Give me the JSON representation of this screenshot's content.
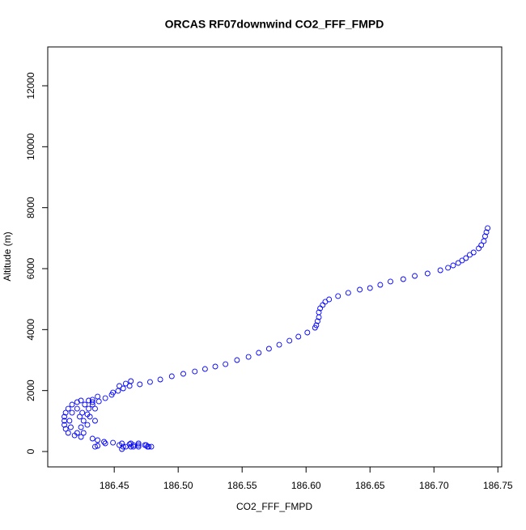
{
  "chart_data": {
    "type": "scatter",
    "title": "ORCAS RF07downwind CO2_FFF_FMPD",
    "x_label": "CO2_FFF_FMPD",
    "y_label": "Altitude (m)",
    "color": "#0000ff",
    "xlim": [
      186.398,
      186.753
    ],
    "ylim": [
      -504,
      13274
    ],
    "xticks": [
      186.45,
      {
        "value": 186.5,
        "label": "186.50"
      },
      186.55,
      {
        "value": 186.6,
        "label": "186.60"
      },
      186.65,
      {
        "value": 186.7,
        "label": "186.70"
      },
      186.75
    ],
    "yticks": [
      0,
      2000,
      4000,
      6000,
      8000,
      10000,
      12000
    ],
    "x": [
      186.742,
      186.741,
      186.74,
      186.739,
      186.737,
      186.735,
      186.731,
      186.728,
      186.725,
      186.722,
      186.719,
      186.715,
      186.711,
      186.705,
      186.695,
      186.685,
      186.676,
      186.666,
      186.658,
      186.65,
      186.642,
      186.633,
      186.625,
      186.618,
      186.615,
      186.613,
      186.611,
      186.61,
      186.61,
      186.609,
      186.608,
      186.607,
      186.601,
      186.594,
      186.587,
      186.579,
      186.571,
      186.563,
      186.555,
      186.546,
      186.537,
      186.529,
      186.521,
      186.513,
      186.504,
      186.495,
      186.486,
      186.478,
      186.47,
      186.462,
      186.457,
      186.453,
      186.448,
      186.443,
      186.438,
      186.433,
      186.463,
      186.459,
      186.454,
      186.449,
      186.411,
      186.411,
      186.412,
      186.414,
      186.417,
      186.421,
      186.424,
      186.427,
      186.43,
      186.429,
      186.426,
      186.424,
      186.421,
      186.419,
      186.414,
      186.412,
      186.411,
      186.417,
      186.421,
      186.43,
      186.433,
      186.435,
      186.431,
      186.429,
      186.426,
      186.435,
      186.415,
      186.416,
      186.423,
      186.425,
      186.437,
      186.433,
      186.424,
      186.433,
      186.437,
      186.442,
      186.449,
      186.456,
      186.462,
      186.469,
      186.475,
      186.479,
      186.454,
      186.456,
      186.457,
      186.435,
      186.437,
      186.443,
      186.463,
      186.465,
      186.469,
      186.474,
      186.476,
      186.477,
      186.459,
      186.463,
      186.465,
      186.469
    ],
    "y": [
      7328,
      7195,
      7063,
      6903,
      6770,
      6664,
      6531,
      6452,
      6345,
      6266,
      6186,
      6106,
      6027,
      5947,
      5841,
      5761,
      5655,
      5576,
      5469,
      5363,
      5310,
      5204,
      5098,
      4991,
      4912,
      4806,
      4699,
      4567,
      4407,
      4275,
      4142,
      4062,
      3903,
      3770,
      3637,
      3504,
      3372,
      3239,
      3106,
      3000,
      2867,
      2788,
      2708,
      2628,
      2549,
      2469,
      2363,
      2283,
      2204,
      2151,
      2071,
      1991,
      1859,
      1752,
      1646,
      1540,
      2310,
      2230,
      2151,
      1938,
      1009,
      1142,
      1274,
      1407,
      1540,
      1620,
      1673,
      1540,
      1407,
      1221,
      1009,
      797,
      611,
      531,
      611,
      743,
      876,
      1274,
      1407,
      1673,
      1620,
      1407,
      1142,
      876,
      611,
      1009,
      1009,
      797,
      1142,
      1274,
      1805,
      1700,
      478,
      425,
      372,
      319,
      292,
      266,
      239,
      212,
      212,
      159,
      212,
      80,
      159,
      159,
      186,
      266,
      159,
      159,
      159,
      212,
      159,
      159,
      159,
      266,
      212,
      266
    ]
  }
}
